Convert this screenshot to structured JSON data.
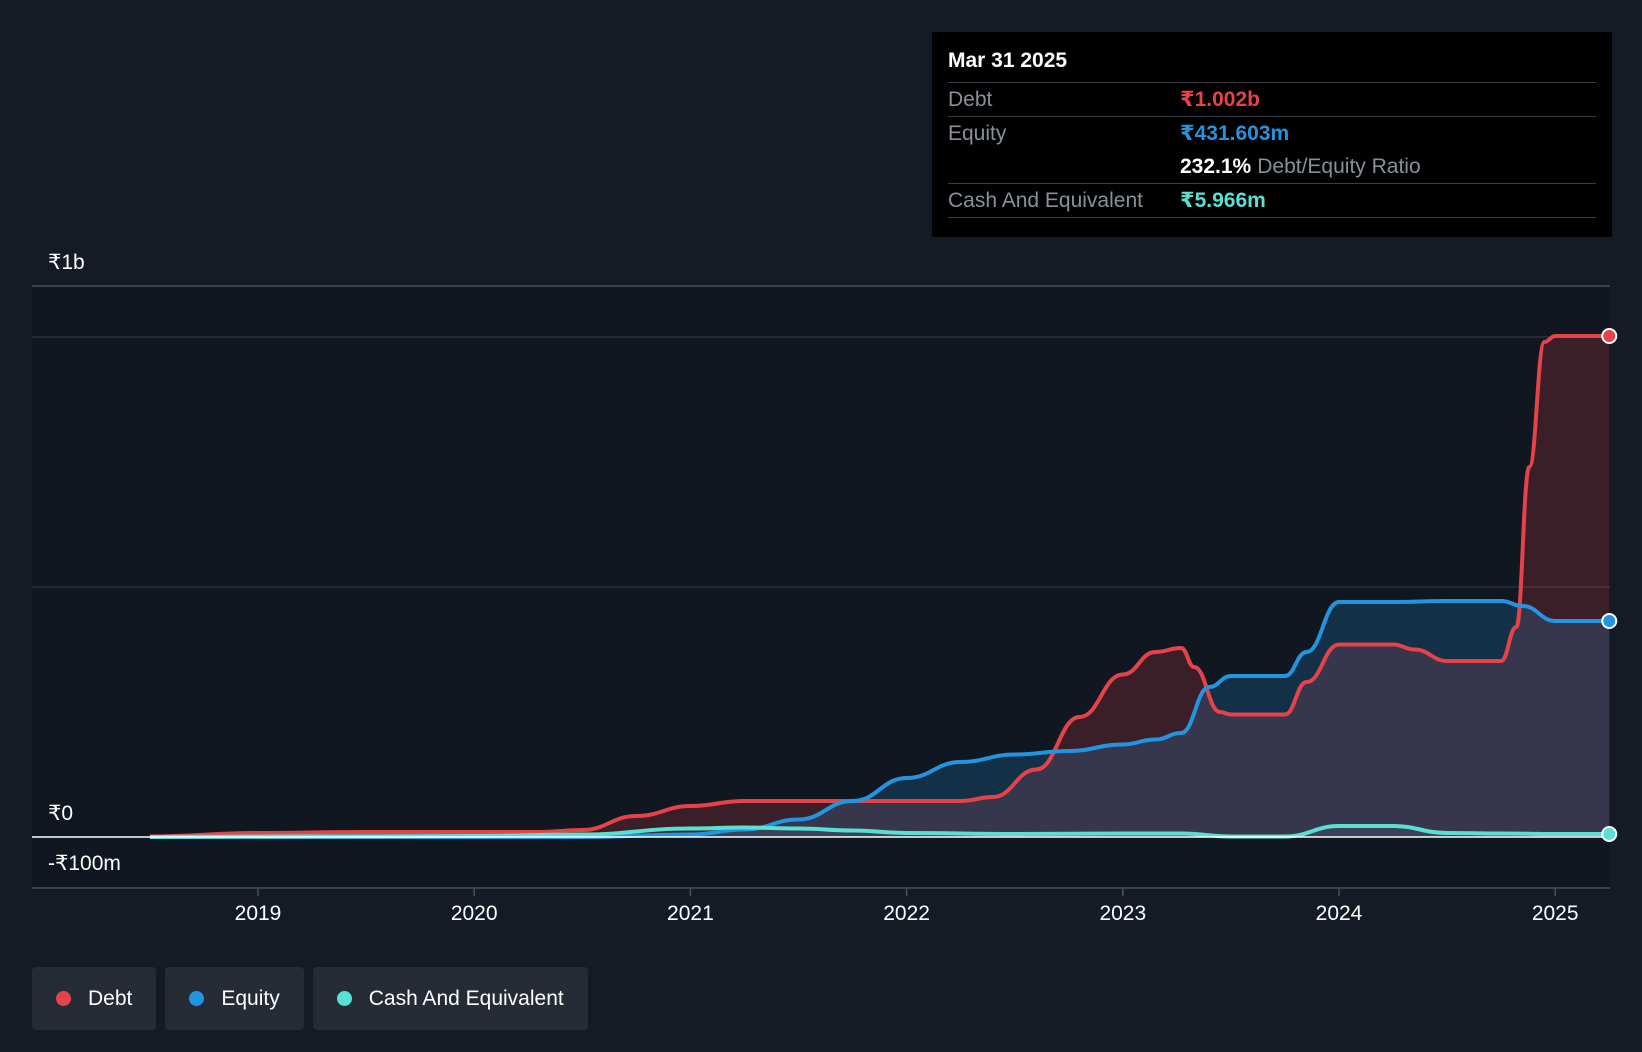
{
  "chart_data": {
    "type": "area",
    "title": "",
    "currency": "₹",
    "y_axis": {
      "top_label": "₹1b",
      "zero_label": "₹0",
      "bottom_label": "-₹100m",
      "ylim": [
        -100,
        1100
      ]
    },
    "x_axis": {
      "ticks": [
        "2019",
        "2020",
        "2021",
        "2022",
        "2023",
        "2024",
        "2025"
      ],
      "xlim": [
        2018.2,
        2025.25
      ]
    },
    "series": [
      {
        "name": "Debt",
        "color": "#e5424a",
        "points": [
          [
            2018.5,
            1
          ],
          [
            2019.0,
            8
          ],
          [
            2019.5,
            10
          ],
          [
            2020.0,
            10
          ],
          [
            2020.3,
            10
          ],
          [
            2020.5,
            14
          ],
          [
            2020.75,
            42
          ],
          [
            2021.0,
            62
          ],
          [
            2021.25,
            72
          ],
          [
            2021.5,
            72
          ],
          [
            2021.75,
            72
          ],
          [
            2022.0,
            72
          ],
          [
            2022.25,
            72
          ],
          [
            2022.4,
            80
          ],
          [
            2022.6,
            135
          ],
          [
            2022.8,
            240
          ],
          [
            2023.0,
            325
          ],
          [
            2023.15,
            370
          ],
          [
            2023.27,
            378
          ],
          [
            2023.33,
            340
          ],
          [
            2023.45,
            250
          ],
          [
            2023.5,
            245
          ],
          [
            2023.6,
            245
          ],
          [
            2023.75,
            245
          ],
          [
            2023.85,
            310
          ],
          [
            2024.0,
            385
          ],
          [
            2024.25,
            385
          ],
          [
            2024.35,
            375
          ],
          [
            2024.5,
            352
          ],
          [
            2024.65,
            352
          ],
          [
            2024.75,
            352
          ],
          [
            2024.82,
            420
          ],
          [
            2024.88,
            740
          ],
          [
            2024.95,
            990
          ],
          [
            2025.0,
            1002
          ],
          [
            2025.25,
            1002
          ]
        ]
      },
      {
        "name": "Equity",
        "color": "#2394df",
        "points": [
          [
            2018.5,
            0
          ],
          [
            2019.0,
            0
          ],
          [
            2020.0,
            0
          ],
          [
            2020.5,
            0
          ],
          [
            2021.0,
            5
          ],
          [
            2021.25,
            15
          ],
          [
            2021.5,
            35
          ],
          [
            2021.75,
            72
          ],
          [
            2022.0,
            118
          ],
          [
            2022.25,
            150
          ],
          [
            2022.5,
            165
          ],
          [
            2022.75,
            172
          ],
          [
            2023.0,
            185
          ],
          [
            2023.15,
            195
          ],
          [
            2023.27,
            208
          ],
          [
            2023.4,
            300
          ],
          [
            2023.5,
            322
          ],
          [
            2023.6,
            322
          ],
          [
            2023.75,
            322
          ],
          [
            2023.85,
            370
          ],
          [
            2024.0,
            470
          ],
          [
            2024.25,
            470
          ],
          [
            2024.5,
            472
          ],
          [
            2024.75,
            472
          ],
          [
            2024.85,
            462
          ],
          [
            2025.0,
            432
          ],
          [
            2025.25,
            432
          ]
        ]
      },
      {
        "name": "Cash And Equivalent",
        "color": "#5ae0d2",
        "points": [
          [
            2018.5,
            0
          ],
          [
            2019.0,
            1
          ],
          [
            2020.0,
            2
          ],
          [
            2020.5,
            5
          ],
          [
            2021.0,
            17
          ],
          [
            2021.25,
            19
          ],
          [
            2021.5,
            17
          ],
          [
            2021.75,
            13
          ],
          [
            2022.0,
            8
          ],
          [
            2022.5,
            6
          ],
          [
            2023.0,
            7
          ],
          [
            2023.27,
            7
          ],
          [
            2023.5,
            1
          ],
          [
            2023.75,
            1
          ],
          [
            2024.0,
            22
          ],
          [
            2024.25,
            22
          ],
          [
            2024.5,
            8
          ],
          [
            2024.75,
            7
          ],
          [
            2025.0,
            6
          ],
          [
            2025.25,
            6
          ]
        ]
      }
    ],
    "tooltip": {
      "date": "Mar 31 2025",
      "debt_label": "Debt",
      "debt_value": "₹1.002b",
      "equity_label": "Equity",
      "equity_value": "₹431.603m",
      "ratio_value": "232.1%",
      "ratio_label": "Debt/Equity Ratio",
      "cash_label": "Cash And Equivalent",
      "cash_value": "₹5.966m"
    },
    "legend": [
      {
        "label": "Debt",
        "color": "#e5424a"
      },
      {
        "label": "Equity",
        "color": "#2394df"
      },
      {
        "label": "Cash And Equivalent",
        "color": "#5ae0d2"
      }
    ]
  }
}
